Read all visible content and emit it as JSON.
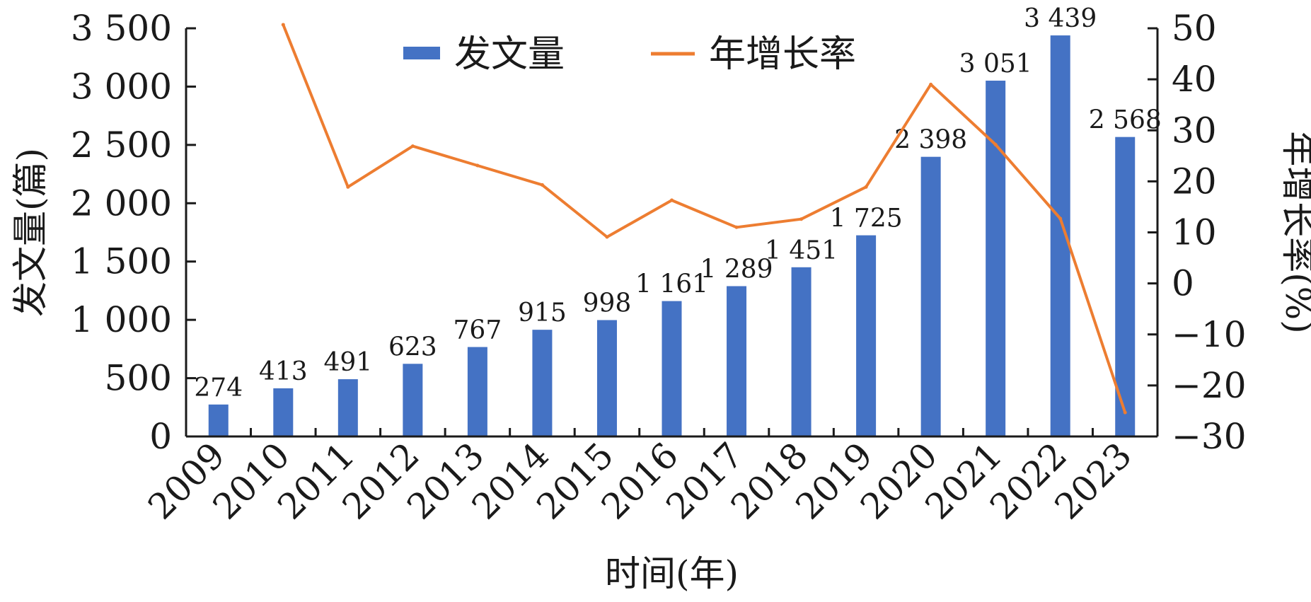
{
  "chart_data": {
    "type": "bar",
    "categories": [
      "2009",
      "2010",
      "2011",
      "2012",
      "2013",
      "2014",
      "2015",
      "2016",
      "2017",
      "2018",
      "2019",
      "2020",
      "2021",
      "2022",
      "2023"
    ],
    "series": [
      {
        "name": "发文量",
        "type": "bar",
        "axis": "left",
        "color": "#4472C4",
        "values": [
          274,
          413,
          491,
          623,
          767,
          915,
          998,
          1161,
          1289,
          1451,
          1725,
          2398,
          3051,
          3439,
          2568
        ],
        "labels": [
          "274",
          "413",
          "491",
          "623",
          "767",
          "915",
          "998",
          "1 161",
          "1 289",
          "1 451",
          "1 725",
          "2 398",
          "3 051",
          "3 439",
          "2 568"
        ]
      },
      {
        "name": "年增长率",
        "type": "line",
        "axis": "right",
        "color": "#ED7D31",
        "values": [
          null,
          50.7,
          18.9,
          26.9,
          23.1,
          19.3,
          9.1,
          16.3,
          11.0,
          12.6,
          18.9,
          39.0,
          27.2,
          12.7,
          -25.3
        ]
      }
    ],
    "xlabel": "时间(年)",
    "ylabel": "发文量(篇)",
    "y2label": "年增长率(%)",
    "ylim": [
      0,
      3500
    ],
    "y2lim": [
      -30,
      50
    ],
    "yticks": [
      0,
      500,
      1000,
      1500,
      2000,
      2500,
      3000,
      3500
    ],
    "yticklabels": [
      "0",
      "500",
      "1 000",
      "1 500",
      "2 000",
      "2 500",
      "3 000",
      "3 500"
    ],
    "y2ticks": [
      -30,
      -20,
      -10,
      0,
      10,
      20,
      30,
      40,
      50
    ],
    "y2ticklabels": [
      "−30",
      "−20",
      "−10",
      "0",
      "10",
      "20",
      "30",
      "40",
      "50"
    ],
    "grid": false,
    "legend": "top-center"
  }
}
